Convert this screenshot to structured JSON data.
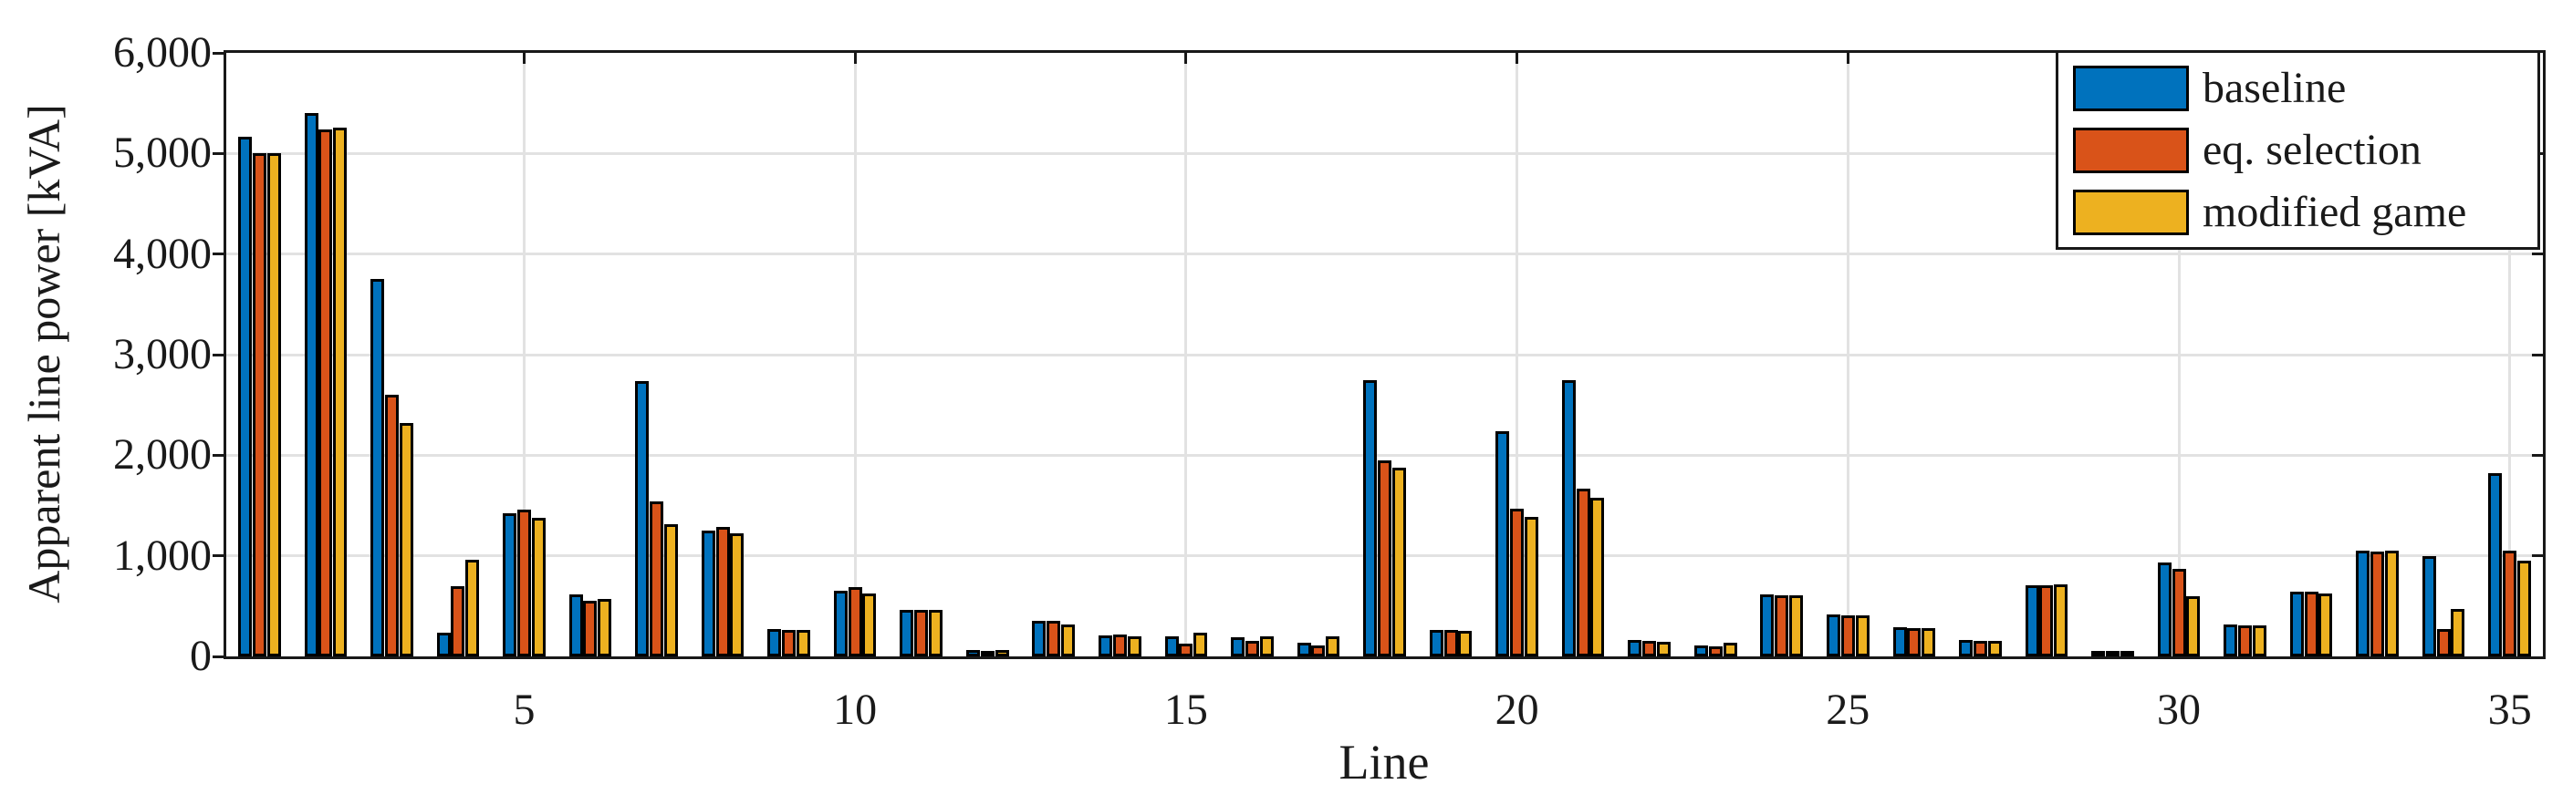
{
  "figure": {
    "background": "#ffffff",
    "axis_color": "#181818",
    "grid_color": "#e2e2e2"
  },
  "chart_data": {
    "type": "bar",
    "title": "",
    "xlabel": "Line",
    "ylabel": "Apparent line power [kVA]",
    "grid": true,
    "legend_position": "top-right",
    "xlim": [
      0.5,
      35.5
    ],
    "ylim": [
      0,
      6000
    ],
    "categories": [
      1,
      2,
      3,
      4,
      5,
      6,
      7,
      8,
      9,
      10,
      11,
      12,
      13,
      14,
      15,
      16,
      17,
      18,
      19,
      20,
      21,
      22,
      23,
      24,
      25,
      26,
      27,
      28,
      29,
      30,
      31,
      32,
      33,
      34,
      35
    ],
    "xticks": [
      {
        "value": 5,
        "label": "5"
      },
      {
        "value": 10,
        "label": "10"
      },
      {
        "value": 15,
        "label": "15"
      },
      {
        "value": 20,
        "label": "20"
      },
      {
        "value": 25,
        "label": "25"
      },
      {
        "value": 30,
        "label": "30"
      },
      {
        "value": 35,
        "label": "35"
      }
    ],
    "yticks": [
      {
        "value": 0,
        "label": "0"
      },
      {
        "value": 1000,
        "label": "1,000"
      },
      {
        "value": 2000,
        "label": "2,000"
      },
      {
        "value": 3000,
        "label": "3,000"
      },
      {
        "value": 4000,
        "label": "4,000"
      },
      {
        "value": 5000,
        "label": "5,000"
      },
      {
        "value": 6000,
        "label": "6,000"
      }
    ],
    "series": [
      {
        "name": "baseline",
        "color": "#0072BD",
        "values": [
          5170,
          5400,
          3750,
          240,
          1420,
          620,
          2740,
          1250,
          270,
          650,
          465,
          65,
          355,
          210,
          200,
          195,
          140,
          2750,
          260,
          2240,
          2750,
          160,
          110,
          620,
          415,
          290,
          165,
          710,
          30,
          930,
          320,
          640,
          1050,
          995,
          1825
        ]
      },
      {
        "name": "eq. selection",
        "color": "#D95319",
        "values": [
          5000,
          5240,
          2600,
          700,
          1460,
          555,
          1545,
          1290,
          265,
          685,
          460,
          55,
          350,
          215,
          125,
          150,
          110,
          1950,
          260,
          1470,
          1670,
          150,
          100,
          605,
          405,
          280,
          155,
          710,
          30,
          870,
          310,
          645,
          1040,
          275,
          1050
        ]
      },
      {
        "name": "modified game",
        "color": "#EDB120",
        "values": [
          5000,
          5260,
          2320,
          960,
          1380,
          570,
          1310,
          1220,
          265,
          630,
          460,
          60,
          320,
          200,
          235,
          200,
          200,
          1880,
          255,
          1390,
          1580,
          145,
          135,
          610,
          410,
          280,
          155,
          715,
          30,
          600,
          310,
          630,
          1050,
          470,
          955
        ]
      }
    ]
  }
}
